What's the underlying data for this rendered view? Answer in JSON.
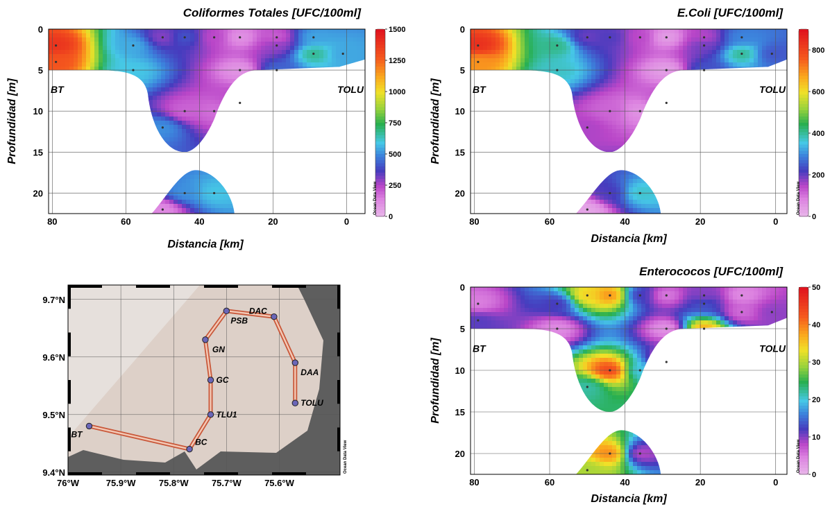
{
  "chart_data": [
    {
      "type": "heatmap",
      "title": "Coliformes Totales [UFC/100ml]",
      "xlabel": "Distancia [km]",
      "ylabel": "Profundidad [m]",
      "xlim": [
        81,
        -5
      ],
      "ylim": [
        0,
        22.5
      ],
      "xticks": [
        "80",
        "60",
        "40",
        "20",
        "0"
      ],
      "yticks": [
        "0",
        "5",
        "10",
        "15",
        "20"
      ],
      "colorbar_ticks": [
        "1500",
        "1250",
        "1000",
        "750",
        "500",
        "250",
        "0"
      ],
      "colorbar_range": [
        0,
        1500
      ],
      "label_left": "BT",
      "label_right": "TOLU",
      "watermark": "Ocean Data View",
      "samples": [
        {
          "x": 79,
          "y": 2,
          "v": 1400
        },
        {
          "x": 79,
          "y": 4,
          "v": 1300
        },
        {
          "x": 58,
          "y": 2,
          "v": 560
        },
        {
          "x": 58,
          "y": 5,
          "v": 600
        },
        {
          "x": 50,
          "y": 1,
          "v": 300
        },
        {
          "x": 50,
          "y": 12,
          "v": 520
        },
        {
          "x": 44,
          "y": 1,
          "v": 420
        },
        {
          "x": 44,
          "y": 10,
          "v": 200
        },
        {
          "x": 44,
          "y": 20,
          "v": 520
        },
        {
          "x": 36,
          "y": 1,
          "v": 250
        },
        {
          "x": 36,
          "y": 10,
          "v": 180
        },
        {
          "x": 36,
          "y": 20,
          "v": 600
        },
        {
          "x": 29,
          "y": 1,
          "v": 100
        },
        {
          "x": 29,
          "y": 5,
          "v": 90
        },
        {
          "x": 29,
          "y": 9,
          "v": 250
        },
        {
          "x": 19,
          "y": 1,
          "v": 200
        },
        {
          "x": 19,
          "y": 2,
          "v": 300
        },
        {
          "x": 19,
          "y": 5,
          "v": 450
        },
        {
          "x": 9,
          "y": 1,
          "v": 550
        },
        {
          "x": 9,
          "y": 3,
          "v": 700
        },
        {
          "x": 1,
          "y": 3,
          "v": 550
        },
        {
          "x": 50,
          "y": 22,
          "v": 120
        }
      ]
    },
    {
      "type": "heatmap",
      "title": "E.Coli [UFC/100ml]",
      "xlabel": "Distancia [km]",
      "ylabel": "Profundidad [m]",
      "xlim": [
        81,
        -3
      ],
      "ylim": [
        0,
        22.5
      ],
      "xticks": [
        "80",
        "60",
        "40",
        "20",
        "0"
      ],
      "yticks": [
        "0",
        "5",
        "10",
        "15",
        "20"
      ],
      "colorbar_ticks": [
        "800",
        "600",
        "400",
        "200",
        "0"
      ],
      "colorbar_range": [
        0,
        900
      ],
      "label_left": "BT",
      "label_right": "TOLU",
      "watermark": "Ocean Data View",
      "samples": [
        {
          "x": 79,
          "y": 2,
          "v": 850
        },
        {
          "x": 79,
          "y": 4,
          "v": 700
        },
        {
          "x": 58,
          "y": 2,
          "v": 420
        },
        {
          "x": 58,
          "y": 5,
          "v": 380
        },
        {
          "x": 50,
          "y": 1,
          "v": 200
        },
        {
          "x": 50,
          "y": 12,
          "v": 160
        },
        {
          "x": 44,
          "y": 1,
          "v": 220
        },
        {
          "x": 44,
          "y": 10,
          "v": 120
        },
        {
          "x": 44,
          "y": 20,
          "v": 220
        },
        {
          "x": 36,
          "y": 1,
          "v": 150
        },
        {
          "x": 36,
          "y": 10,
          "v": 60
        },
        {
          "x": 36,
          "y": 20,
          "v": 380
        },
        {
          "x": 29,
          "y": 1,
          "v": 40
        },
        {
          "x": 29,
          "y": 5,
          "v": 40
        },
        {
          "x": 29,
          "y": 9,
          "v": 150
        },
        {
          "x": 19,
          "y": 1,
          "v": 150
        },
        {
          "x": 19,
          "y": 2,
          "v": 200
        },
        {
          "x": 19,
          "y": 5,
          "v": 250
        },
        {
          "x": 9,
          "y": 1,
          "v": 300
        },
        {
          "x": 9,
          "y": 3,
          "v": 420
        },
        {
          "x": 1,
          "y": 3,
          "v": 250
        },
        {
          "x": 50,
          "y": 22,
          "v": 30
        }
      ]
    },
    {
      "type": "map",
      "xticks": [
        "76°W",
        "75.9°W",
        "75.8°W",
        "75.7°W",
        "75.6°W"
      ],
      "yticks": [
        "9.7°N",
        "9.6°N",
        "9.5°N",
        "9.4°N"
      ],
      "xlim": [
        -76.0,
        -75.485
      ],
      "ylim": [
        9.395,
        9.725
      ],
      "watermark": "Ocean Data View",
      "stations": [
        {
          "name": "BT",
          "lon": -75.96,
          "lat": 9.48
        },
        {
          "name": "BC",
          "lon": -75.77,
          "lat": 9.44
        },
        {
          "name": "TLU1",
          "lon": -75.73,
          "lat": 9.5
        },
        {
          "name": "GC",
          "lon": -75.73,
          "lat": 9.56
        },
        {
          "name": "GN",
          "lon": -75.74,
          "lat": 9.63
        },
        {
          "name": "PSB",
          "lon": -75.7,
          "lat": 9.68
        },
        {
          "name": "DAC",
          "lon": -75.61,
          "lat": 9.67
        },
        {
          "name": "DAA",
          "lon": -75.57,
          "lat": 9.59
        },
        {
          "name": "TOLU",
          "lon": -75.57,
          "lat": 9.52
        }
      ]
    },
    {
      "type": "heatmap",
      "title": "Enterococos [UFC/100ml]",
      "xlabel": "Distancia [km]",
      "ylabel": "Profundidad [m]",
      "xlim": [
        81,
        -3
      ],
      "ylim": [
        0,
        22.5
      ],
      "xticks": [
        "80",
        "60",
        "40",
        "20",
        "0"
      ],
      "yticks": [
        "0",
        "5",
        "10",
        "15",
        "20"
      ],
      "colorbar_ticks": [
        "50",
        "40",
        "30",
        "20",
        "10",
        "0"
      ],
      "colorbar_range": [
        0,
        50
      ],
      "label_left": "BT",
      "label_right": "TOLU",
      "watermark": "Ocean Data View",
      "samples": [
        {
          "x": 79,
          "y": 2,
          "v": 5
        },
        {
          "x": 79,
          "y": 4,
          "v": 12
        },
        {
          "x": 58,
          "y": 2,
          "v": 12
        },
        {
          "x": 58,
          "y": 5,
          "v": 4
        },
        {
          "x": 50,
          "y": 1,
          "v": 35
        },
        {
          "x": 50,
          "y": 12,
          "v": 22
        },
        {
          "x": 44,
          "y": 1,
          "v": 40
        },
        {
          "x": 44,
          "y": 10,
          "v": 45
        },
        {
          "x": 44,
          "y": 20,
          "v": 40
        },
        {
          "x": 36,
          "y": 1,
          "v": 12
        },
        {
          "x": 36,
          "y": 10,
          "v": 20
        },
        {
          "x": 36,
          "y": 20,
          "v": 8
        },
        {
          "x": 29,
          "y": 1,
          "v": 5
        },
        {
          "x": 29,
          "y": 5,
          "v": 3
        },
        {
          "x": 29,
          "y": 9,
          "v": 4
        },
        {
          "x": 19,
          "y": 1,
          "v": 10
        },
        {
          "x": 19,
          "y": 2,
          "v": 14
        },
        {
          "x": 19,
          "y": 5,
          "v": 38
        },
        {
          "x": 9,
          "y": 1,
          "v": 4
        },
        {
          "x": 9,
          "y": 3,
          "v": 6
        },
        {
          "x": 1,
          "y": 3,
          "v": 10
        },
        {
          "x": 50,
          "y": 22,
          "v": 30
        }
      ]
    }
  ]
}
